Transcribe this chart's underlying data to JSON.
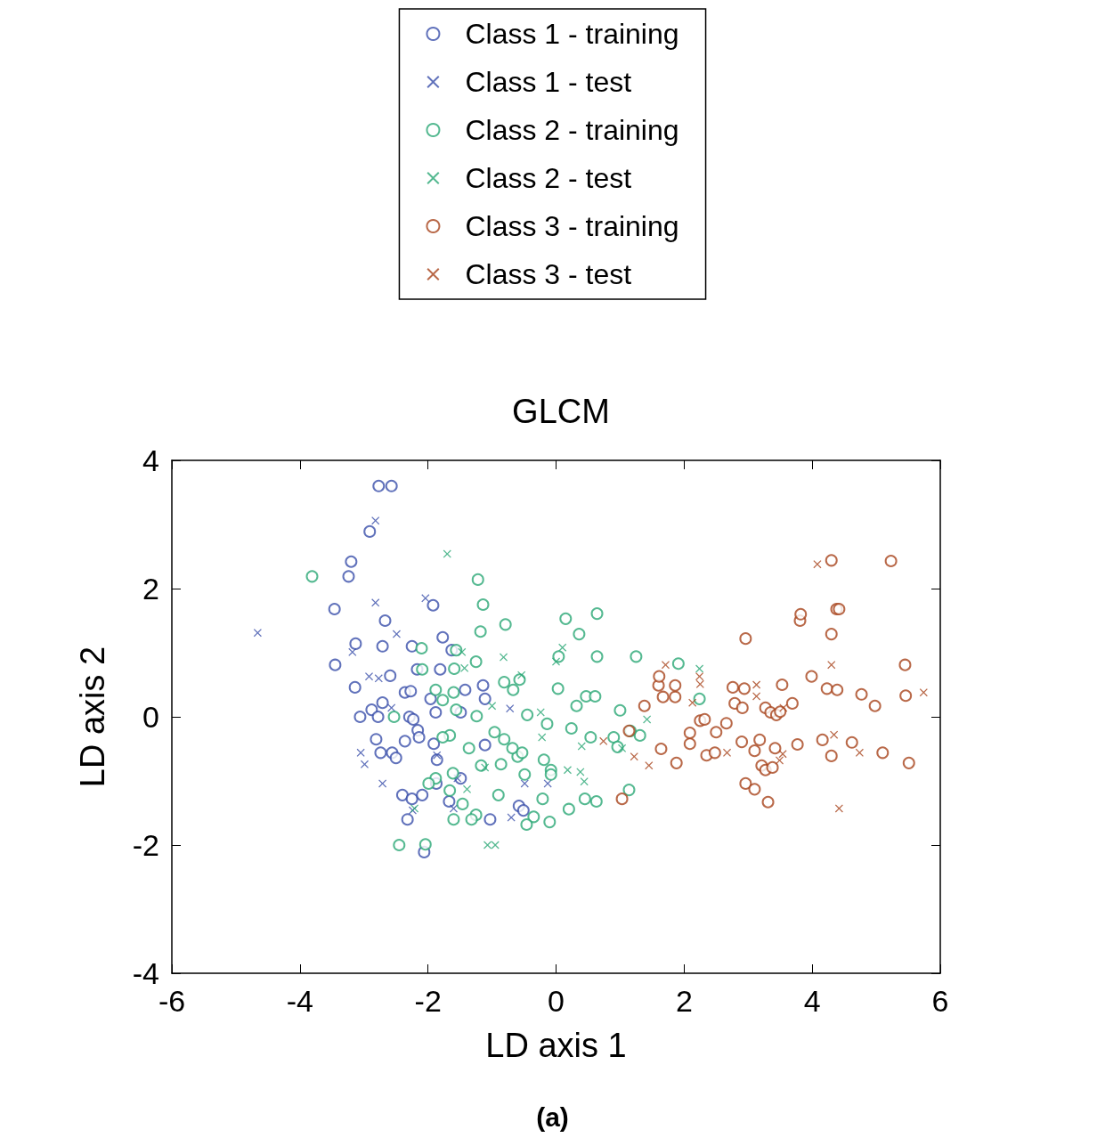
{
  "chart_data": {
    "type": "scatter",
    "title": "GLCM",
    "xlabel": "LD axis 1",
    "ylabel": "LD axis 2",
    "annotations": [
      "(a)"
    ],
    "xlim": [
      -6,
      6
    ],
    "xticks": [
      -6,
      -4,
      -2,
      0,
      2,
      4,
      6
    ],
    "ylim": [
      -4,
      4
    ],
    "yticks": [
      -4,
      -2,
      0,
      2,
      4
    ],
    "grid": false,
    "legend": "top",
    "series": [
      {
        "name": "Class 1 - training",
        "color": "#3a4faa",
        "marker": "circle",
        "x": [
          -2.77,
          -2.57,
          -2.91,
          -3.2,
          -3.24,
          -3.46,
          -2.67,
          -1.92,
          -1.77,
          -3.13,
          -2.71,
          -2.25,
          -3.45,
          -3.14,
          -2.59,
          -2.17,
          -2.36,
          -2.27,
          -2.71,
          -2.88,
          -3.06,
          -2.78,
          -2.29,
          -2.81,
          -2.74,
          -2.56,
          -2.5,
          -2.36,
          -2.23,
          -2.16,
          -2.14,
          -2.4,
          -2.25,
          -2.09,
          -2.32,
          -2.06,
          -1.81,
          -1.96,
          -1.88,
          -1.91,
          -1.86,
          -1.87,
          -1.67,
          -1.49,
          -1.42,
          -1.49,
          -1.14,
          -1.11,
          -1.11,
          -1.03,
          -0.58,
          -0.51,
          -1.63
        ],
        "values": [
          3.6,
          3.6,
          2.89,
          2.42,
          2.19,
          1.68,
          1.5,
          1.74,
          1.24,
          1.14,
          1.1,
          1.1,
          0.81,
          0.46,
          0.64,
          0.74,
          0.38,
          0.4,
          0.22,
          0.11,
          0,
          0,
          0,
          -0.35,
          -0.56,
          -0.56,
          -0.64,
          -0.38,
          -0.04,
          -0.21,
          -0.32,
          -1.22,
          -1.28,
          -1.22,
          -1.6,
          -2.11,
          0.74,
          0.28,
          0.07,
          -0.42,
          -0.67,
          -1.04,
          -1.32,
          -0.96,
          0.42,
          0.07,
          0.49,
          0.28,
          -0.44,
          -1.6,
          -1.39,
          -1.46,
          1.04
        ]
      },
      {
        "name": "Class 1 - test",
        "color": "#3a4faa",
        "marker": "cross",
        "x": [
          -4.66,
          -2.82,
          -2.82,
          -3.18,
          -2.92,
          -2.77,
          -2.49,
          -2.57,
          -3.05,
          -2.99,
          -2.71,
          -2.04,
          -1.86,
          -1.54,
          -0.72,
          -0.49,
          -0.13,
          -1.6,
          -2.24,
          -0.7
        ],
        "values": [
          1.31,
          3.06,
          1.78,
          1.01,
          0.63,
          0.6,
          1.29,
          0.14,
          -0.56,
          -0.74,
          -1.04,
          1.85,
          -0.6,
          -0.96,
          0.13,
          -1.04,
          -1.04,
          -1.43,
          -1.46,
          -1.57
        ]
      },
      {
        "name": "Class 2 - training",
        "color": "#2aa876",
        "marker": "circle",
        "x": [
          -3.81,
          -1.22,
          -1.14,
          -0.79,
          -1.18,
          0.15,
          0.64,
          0.36,
          0.04,
          0.64,
          1.25,
          1.91,
          -1.25,
          -0.81,
          -0.67,
          0.03,
          0.47,
          0.61,
          1.0,
          0.32,
          -0.45,
          -0.14,
          0.24,
          0.54,
          0.9,
          1.31,
          0.96,
          1.16,
          2.24,
          1.14,
          0.45,
          0.63,
          0.2,
          -0.1,
          -0.35,
          -0.46,
          -0.21,
          -0.08,
          -0.08,
          -0.19,
          -0.49,
          -0.6,
          -0.68,
          -0.81,
          -0.96,
          -1.24,
          -1.36,
          -1.17,
          -1.61,
          -1.88,
          -1.99,
          -1.66,
          -1.46,
          -1.6,
          -1.25,
          -2.45,
          -2.04,
          -2.53,
          -1.88,
          -1.77,
          -1.6,
          -1.56,
          -1.66,
          -1.77,
          -2.09,
          -2.1,
          -1.59,
          -1.56,
          -0.57,
          -0.86,
          -0.53,
          -0.9,
          -1.32
        ],
        "values": [
          2.19,
          2.14,
          1.75,
          1.44,
          1.33,
          1.53,
          1.61,
          1.29,
          0.94,
          0.94,
          0.94,
          0.83,
          0.86,
          0.54,
          0.42,
          0.44,
          0.32,
          0.32,
          0.1,
          0.17,
          0.03,
          -0.11,
          -0.18,
          -0.32,
          -0.32,
          -0.29,
          -0.47,
          -0.22,
          0.28,
          -1.14,
          -1.28,
          -1.32,
          -1.44,
          -1.64,
          -1.56,
          -1.68,
          -1.28,
          -0.83,
          -0.9,
          -0.67,
          -0.9,
          -0.62,
          -0.49,
          -0.35,
          -0.24,
          0.01,
          -0.49,
          -0.76,
          -0.88,
          -0.96,
          -1.04,
          -1.15,
          -1.36,
          -1.6,
          -1.53,
          -2.0,
          -1.99,
          0,
          0.42,
          0.26,
          0.38,
          0.11,
          -0.29,
          -0.32,
          0.74,
          1.07,
          0.75,
          1.04,
          0.58,
          -0.74,
          -0.56,
          -1.22,
          -1.6
        ]
      },
      {
        "name": "Class 2 - test",
        "color": "#2aa876",
        "marker": "cross",
        "x": [
          -1.7,
          -1.47,
          -1.43,
          -0.82,
          -0.54,
          0.1,
          0,
          -1.0,
          -0.22,
          -0.24,
          0.18,
          0.38,
          0.44,
          0.4,
          -1.11,
          -1.39,
          -2.21,
          -1.07,
          -0.95,
          1.42,
          2.24,
          1.03
        ],
        "values": [
          2.54,
          1.01,
          0.76,
          0.93,
          0.65,
          1.08,
          0.86,
          0.17,
          -0.32,
          0.07,
          -0.83,
          -0.86,
          -1.01,
          -0.46,
          -0.79,
          -1.13,
          -1.43,
          -2.0,
          -2.0,
          -0.04,
          0.75,
          -0.49
        ]
      },
      {
        "name": "Class 3 - training",
        "color": "#a8431c",
        "marker": "circle",
        "x": [
          1.03,
          1.14,
          1.38,
          1.6,
          1.61,
          1.67,
          1.86,
          1.86,
          1.64,
          1.88,
          2.09,
          2.09,
          2.25,
          2.32,
          2.5,
          2.35,
          2.48,
          2.66,
          2.96,
          2.76,
          2.94,
          2.79,
          2.91,
          2.9,
          2.96,
          3.1,
          3.1,
          3.31,
          3.18,
          3.21,
          3.27,
          3.27,
          3.35,
          3.44,
          3.5,
          3.42,
          3.38,
          3.53,
          3.69,
          3.77,
          3.81,
          3.82,
          3.99,
          4.16,
          4.23,
          4.39,
          4.3,
          4.3,
          4.38,
          4.42,
          4.3,
          4.62,
          4.77,
          4.98,
          5.1,
          5.23,
          5.45,
          5.46,
          5.51
        ],
        "values": [
          -1.28,
          -0.22,
          0.17,
          0.49,
          0.63,
          0.31,
          0.31,
          0.49,
          -0.5,
          -0.72,
          -0.42,
          -0.25,
          -0.06,
          -0.04,
          -0.24,
          -0.6,
          -0.56,
          -0.1,
          1.22,
          0.46,
          0.44,
          0.21,
          0.14,
          -0.39,
          -1.04,
          -1.13,
          -0.53,
          -1.33,
          -0.36,
          -0.76,
          -0.83,
          0.14,
          0.07,
          0.03,
          0.08,
          -0.49,
          -0.79,
          0.5,
          0.21,
          -0.43,
          1.5,
          1.6,
          0.63,
          -0.36,
          0.44,
          0.42,
          1.29,
          2.44,
          1.68,
          1.68,
          -0.61,
          -0.4,
          0.35,
          0.17,
          -0.56,
          2.43,
          0.81,
          0.33,
          -0.72
        ]
      },
      {
        "name": "Class 3 - test",
        "color": "#a8431c",
        "marker": "cross",
        "x": [
          0.74,
          1.22,
          1.45,
          1.71,
          2.24,
          2.25,
          2.13,
          2.67,
          3.13,
          3.13,
          3.49,
          3.54,
          3.55,
          4.08,
          4.3,
          4.34,
          4.74,
          4.42,
          5.74
        ],
        "values": [
          -0.38,
          -0.62,
          -0.76,
          0.81,
          0.63,
          0.51,
          0.22,
          -0.56,
          0.5,
          0.32,
          -0.68,
          -0.58,
          0.14,
          2.38,
          0.81,
          -0.28,
          -0.56,
          -1.43,
          0.38
        ]
      }
    ]
  }
}
